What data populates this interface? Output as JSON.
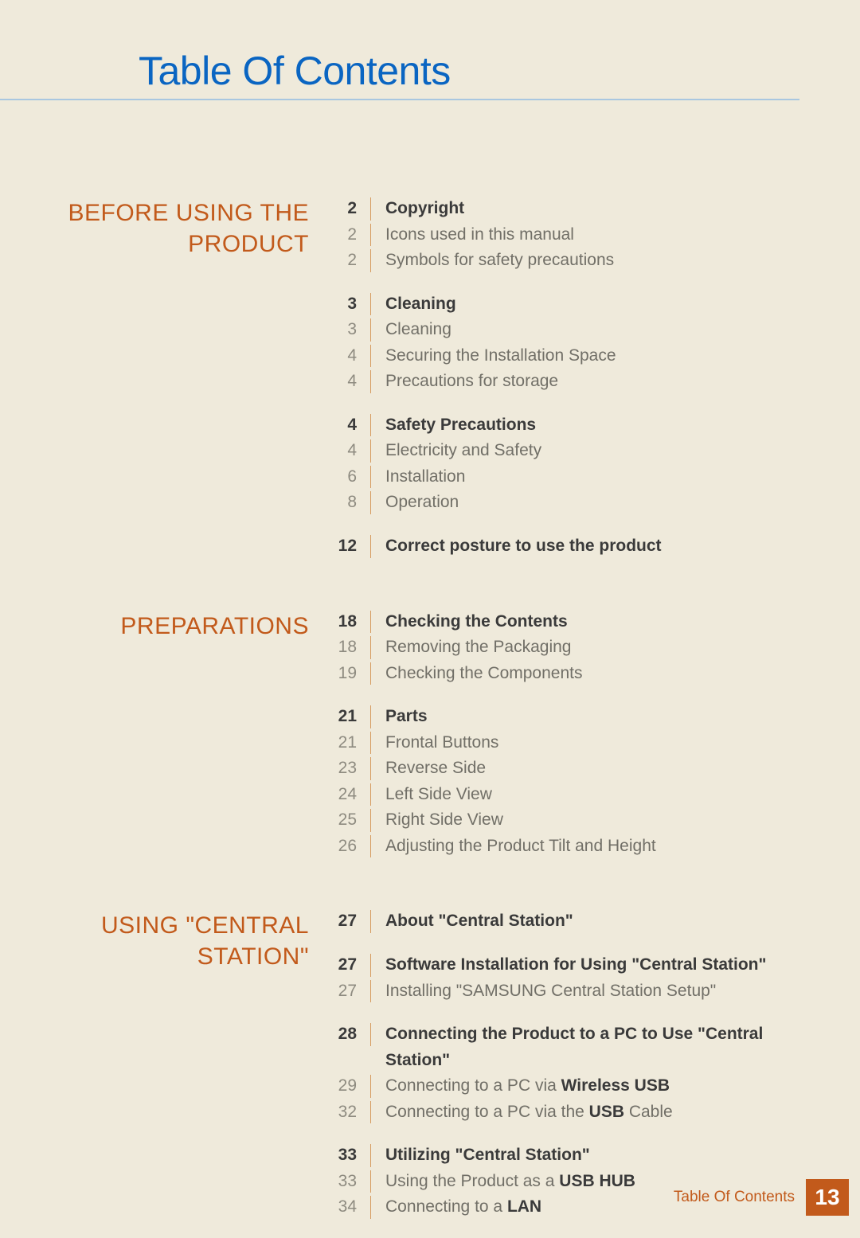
{
  "title": "Table Of Contents",
  "footer_label": "Table Of Contents",
  "page_number": "13",
  "colors": {
    "background": "#efeadb",
    "title": "#0a65c2",
    "title_rule": "#a9c7e0",
    "chapter": "#c25a1b",
    "divider": "#d59a5f",
    "major_text": "#3a3a3a",
    "minor_text": "#716f67",
    "minor_page": "#8e8b80",
    "footer_bg": "#c25a1b",
    "footer_text": "#ffffff"
  },
  "typography": {
    "title_fontsize": 50,
    "chapter_fontsize": 30,
    "entry_fontsize": 21,
    "footer_label_fontsize": 19,
    "page_number_fontsize": 28
  },
  "chapters": [
    {
      "label": "BEFORE USING THE PRODUCT",
      "subsections": [
        {
          "entries": [
            {
              "page": "2",
              "text": "Copyright",
              "major": true
            },
            {
              "page": "2",
              "text": "Icons used in this manual"
            },
            {
              "page": "2",
              "text": "Symbols for safety precautions"
            }
          ]
        },
        {
          "entries": [
            {
              "page": "3",
              "text": "Cleaning",
              "major": true
            },
            {
              "page": "3",
              "text": "Cleaning"
            },
            {
              "page": "4",
              "text": "Securing the Installation Space"
            },
            {
              "page": "4",
              "text": "Precautions for storage"
            }
          ]
        },
        {
          "entries": [
            {
              "page": "4",
              "text": "Safety Precautions",
              "major": true
            },
            {
              "page": "4",
              "text": "Electricity and Safety"
            },
            {
              "page": "6",
              "text": "Installation"
            },
            {
              "page": "8",
              "text": "Operation"
            }
          ]
        },
        {
          "entries": [
            {
              "page": "12",
              "text": "Correct posture to use the product",
              "major": true
            }
          ]
        }
      ]
    },
    {
      "label": "PREPARATIONS",
      "subsections": [
        {
          "entries": [
            {
              "page": "18",
              "text": "Checking the Contents",
              "major": true
            },
            {
              "page": "18",
              "text": "Removing the Packaging"
            },
            {
              "page": "19",
              "text": "Checking the Components"
            }
          ]
        },
        {
          "entries": [
            {
              "page": "21",
              "text": "Parts",
              "major": true
            },
            {
              "page": "21",
              "text": "Frontal Buttons"
            },
            {
              "page": "23",
              "text": "Reverse Side"
            },
            {
              "page": "24",
              "text": "Left Side View"
            },
            {
              "page": "25",
              "text": "Right Side View"
            },
            {
              "page": "26",
              "text": "Adjusting the Product Tilt and Height"
            }
          ]
        }
      ]
    },
    {
      "label": "USING \"CENTRAL STATION\"",
      "subsections": [
        {
          "entries": [
            {
              "page": "27",
              "text": "About \"Central Station\"",
              "major": true
            }
          ]
        },
        {
          "entries": [
            {
              "page": "27",
              "text": "Software Installation for Using \"Central Station\"",
              "major": true
            },
            {
              "page": "27",
              "text": "Installing \"SAMSUNG Central Station Setup\""
            }
          ]
        },
        {
          "entries": [
            {
              "page": "28",
              "text": "Connecting the Product to a PC to Use \"Central Station\"",
              "major": true
            },
            {
              "page": "29",
              "pre": "Connecting to a PC via ",
              "bold": "Wireless USB",
              "post": ""
            },
            {
              "page": "32",
              "pre": "Connecting to a PC via the ",
              "bold": "USB",
              "post": " Cable"
            }
          ]
        },
        {
          "entries": [
            {
              "page": "33",
              "text": "Utilizing \"Central Station\"",
              "major": true
            },
            {
              "page": "33",
              "pre": "Using the Product as a ",
              "bold": "USB HUB",
              "post": ""
            },
            {
              "page": "34",
              "pre": "Connecting to a ",
              "bold": "LAN",
              "post": ""
            }
          ]
        }
      ]
    }
  ]
}
